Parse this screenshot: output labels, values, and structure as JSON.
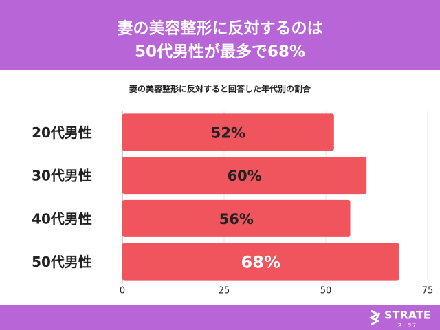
{
  "chart_data": {
    "type": "bar",
    "orientation": "horizontal",
    "title": [
      "妻の美容整形に反対するのは",
      "50代男性が最多で68%"
    ],
    "subtitle": "妻の美容整形に反対すると回答した年代別の割合",
    "categories": [
      "20代男性",
      "30代男性",
      "40代男性",
      "50代男性"
    ],
    "values": [
      52,
      60,
      56,
      68
    ],
    "value_labels": [
      "52%",
      "60%",
      "56%",
      "68%"
    ],
    "color": "#f0545c",
    "xlim": [
      0,
      75
    ],
    "xticks": [
      0,
      25,
      50,
      75
    ],
    "grid": true,
    "logo": {
      "name": "STRATE",
      "kana": "ストラテ"
    }
  }
}
